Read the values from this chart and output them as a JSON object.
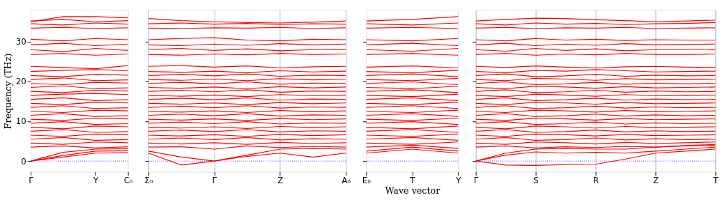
{
  "chart_data": [
    {
      "type": "line",
      "ylabel": "Frequency (THz)",
      "categories": [
        "Γ",
        null,
        "Y",
        "C₀"
      ],
      "ylim": [
        -2.7,
        38
      ],
      "yticks": [
        0,
        10,
        20,
        30
      ],
      "line_style": "solid",
      "ref_lines": [
        {
          "axis": "y",
          "value": 0,
          "color": "#0000ff",
          "line_style": "dotted"
        }
      ],
      "series": [
        {
          "color": "#ff0000",
          "values": [
            0,
            1.0,
            2.0,
            2.1
          ]
        },
        {
          "color": "#ff0000",
          "values": [
            0,
            1.4,
            2.5,
            2.6
          ]
        },
        {
          "color": "#ff0000",
          "values": [
            0,
            2.2,
            3.0,
            3.1
          ]
        },
        {
          "color": "#ff0000",
          "values": [
            3.5,
            3.8,
            3.3,
            3.6
          ]
        },
        {
          "color": "#ff0000",
          "values": [
            4.5,
            4.2,
            4.8,
            4.6
          ]
        },
        {
          "color": "#ff0000",
          "values": [
            5.5,
            5.9,
            5.2,
            5.4
          ]
        },
        {
          "color": "#ff0000",
          "values": [
            6.5,
            6.2,
            6.8,
            6.6
          ]
        },
        {
          "color": "#ff0000",
          "values": [
            7.5,
            7.9,
            7.2,
            7.4
          ]
        },
        {
          "color": "#ff0000",
          "values": [
            8.5,
            8.1,
            8.8,
            8.6
          ]
        },
        {
          "color": "#ff0000",
          "values": [
            9.5,
            9.9,
            9.2,
            9.4
          ]
        },
        {
          "color": "#ff0000",
          "values": [
            10.5,
            10.2,
            10.8,
            10.6
          ]
        },
        {
          "color": "#ff0000",
          "values": [
            11.5,
            11.9,
            11.2,
            11.4
          ]
        },
        {
          "color": "#ff0000",
          "values": [
            12.5,
            12.2,
            12.8,
            12.6
          ]
        },
        {
          "color": "#ff0000",
          "values": [
            13.5,
            13.9,
            13.2,
            13.4
          ]
        },
        {
          "color": "#ff0000",
          "values": [
            14.5,
            14.2,
            14.8,
            14.6
          ]
        },
        {
          "color": "#ff0000",
          "values": [
            15.5,
            15.9,
            15.2,
            15.4
          ]
        },
        {
          "color": "#ff0000",
          "values": [
            16.5,
            16.8,
            17.0,
            16.7
          ]
        },
        {
          "color": "#ff0000",
          "values": [
            17.5,
            17.2,
            17.8,
            17.6
          ]
        },
        {
          "color": "#ff0000",
          "values": [
            18.5,
            18.9,
            18.2,
            18.4
          ]
        },
        {
          "color": "#ff0000",
          "values": [
            19.5,
            19.2,
            19.8,
            19.6
          ]
        },
        {
          "color": "#ff0000",
          "values": [
            20.5,
            20.9,
            20.2,
            20.4
          ]
        },
        {
          "color": "#ff0000",
          "values": [
            21.5,
            21.2,
            21.8,
            21.6
          ]
        },
        {
          "color": "#ff0000",
          "values": [
            22.5,
            22.8,
            23.0,
            22.7
          ]
        },
        {
          "color": "#ff0000",
          "values": [
            23.8,
            23.5,
            23.2,
            24.0
          ]
        },
        {
          "color": "#ff0000",
          "values": [
            26.8,
            27.0,
            26.6,
            26.9
          ]
        },
        {
          "color": "#ff0000",
          "values": [
            28.0,
            27.5,
            28.3,
            27.8
          ]
        },
        {
          "color": "#ff0000",
          "values": [
            29.2,
            29.6,
            29.0,
            29.4
          ]
        },
        {
          "color": "#ff0000",
          "values": [
            30.6,
            30.2,
            30.8,
            30.5
          ]
        },
        {
          "color": "#ff0000",
          "values": [
            33.4,
            33.6,
            33.3,
            33.5
          ]
        },
        {
          "color": "#ff0000",
          "values": [
            34.5,
            34.2,
            34.7,
            34.4
          ]
        },
        {
          "color": "#ff0000",
          "values": [
            35.2,
            35.6,
            35.0,
            35.3
          ]
        },
        {
          "color": "#ff0000",
          "values": [
            35.0,
            36.3,
            36.3,
            36.0
          ]
        }
      ]
    },
    {
      "type": "line",
      "tick_labels": "x",
      "categories": [
        "Σ₀",
        null,
        "Γ",
        null,
        "Z",
        null,
        "A₀"
      ],
      "ylim": [
        -2.7,
        38
      ],
      "yticks": [
        0,
        10,
        20,
        30
      ],
      "grid": "x",
      "line_style": "solid",
      "ref_lines": [
        {
          "axis": "y",
          "value": 0,
          "color": "#0000ff",
          "line_style": "dotted"
        }
      ],
      "series": [
        {
          "color": "#ff0000",
          "values": [
            2.0,
            -1.0,
            0.0,
            1.2,
            2.0,
            1.0,
            2.0
          ]
        },
        {
          "color": "#ff0000",
          "values": [
            2.5,
            1.0,
            0.0,
            1.5,
            3.0,
            3.2,
            3.0
          ]
        },
        {
          "color": "#ff0000",
          "values": [
            3.5,
            3.6,
            3.0,
            3.8,
            3.4,
            3.7,
            3.5
          ]
        },
        {
          "color": "#ff0000",
          "values": [
            4.5,
            4.3,
            4.6,
            4.2,
            4.7,
            4.4,
            4.6
          ]
        },
        {
          "color": "#ff0000",
          "values": [
            5.5,
            5.8,
            5.4,
            5.9,
            5.3,
            5.6,
            5.5
          ]
        },
        {
          "color": "#ff0000",
          "values": [
            6.5,
            6.3,
            6.6,
            6.2,
            6.7,
            6.4,
            6.6
          ]
        },
        {
          "color": "#ff0000",
          "values": [
            7.5,
            7.8,
            7.4,
            7.9,
            7.3,
            7.6,
            7.5
          ]
        },
        {
          "color": "#ff0000",
          "values": [
            8.5,
            8.3,
            8.6,
            8.2,
            8.7,
            8.4,
            8.6
          ]
        },
        {
          "color": "#ff0000",
          "values": [
            9.5,
            9.8,
            9.4,
            9.9,
            9.3,
            9.6,
            9.5
          ]
        },
        {
          "color": "#ff0000",
          "values": [
            10.5,
            10.3,
            10.6,
            10.2,
            10.7,
            10.4,
            10.6
          ]
        },
        {
          "color": "#ff0000",
          "values": [
            11.5,
            11.8,
            11.4,
            11.9,
            11.3,
            11.6,
            11.5
          ]
        },
        {
          "color": "#ff0000",
          "values": [
            12.5,
            12.3,
            12.6,
            12.2,
            12.7,
            12.4,
            12.6
          ]
        },
        {
          "color": "#ff0000",
          "values": [
            13.5,
            13.8,
            13.4,
            13.9,
            13.3,
            13.6,
            13.5
          ]
        },
        {
          "color": "#ff0000",
          "values": [
            14.5,
            14.3,
            14.6,
            14.2,
            14.7,
            14.4,
            14.6
          ]
        },
        {
          "color": "#ff0000",
          "values": [
            15.5,
            15.8,
            15.4,
            15.9,
            15.3,
            15.6,
            15.5
          ]
        },
        {
          "color": "#ff0000",
          "values": [
            16.5,
            16.3,
            16.6,
            16.2,
            16.7,
            16.4,
            16.6
          ]
        },
        {
          "color": "#ff0000",
          "values": [
            17.5,
            17.8,
            17.4,
            17.9,
            17.3,
            17.6,
            17.5
          ]
        },
        {
          "color": "#ff0000",
          "values": [
            18.5,
            18.3,
            18.6,
            18.2,
            18.7,
            18.4,
            18.6
          ]
        },
        {
          "color": "#ff0000",
          "values": [
            19.5,
            19.8,
            19.4,
            19.9,
            19.3,
            19.6,
            19.5
          ]
        },
        {
          "color": "#ff0000",
          "values": [
            20.5,
            20.3,
            20.6,
            20.2,
            20.7,
            20.4,
            20.6
          ]
        },
        {
          "color": "#ff0000",
          "values": [
            21.5,
            21.8,
            21.4,
            21.9,
            21.3,
            21.6,
            21.5
          ]
        },
        {
          "color": "#ff0000",
          "values": [
            22.5,
            22.3,
            22.6,
            22.2,
            22.7,
            22.4,
            22.6
          ]
        },
        {
          "color": "#ff0000",
          "values": [
            23.8,
            24.0,
            23.6,
            23.9,
            23.4,
            23.7,
            23.8
          ]
        },
        {
          "color": "#ff0000",
          "values": [
            26.8,
            26.6,
            26.9,
            26.7,
            27.0,
            26.8,
            26.9
          ]
        },
        {
          "color": "#ff0000",
          "values": [
            28.0,
            28.3,
            27.8,
            28.2,
            27.7,
            28.0,
            28.1
          ]
        },
        {
          "color": "#ff0000",
          "values": [
            29.2,
            29.0,
            29.4,
            29.1,
            29.5,
            29.2,
            29.4
          ]
        },
        {
          "color": "#ff0000",
          "values": [
            30.5,
            30.8,
            31.0,
            30.4,
            30.2,
            30.6,
            30.5
          ]
        },
        {
          "color": "#ff0000",
          "values": [
            33.4,
            33.3,
            33.5,
            33.4,
            33.6,
            33.3,
            33.5
          ]
        },
        {
          "color": "#ff0000",
          "values": [
            34.5,
            34.7,
            34.4,
            34.6,
            34.3,
            34.5,
            34.4
          ]
        },
        {
          "color": "#ff0000",
          "values": [
            35.8,
            35.3,
            35.0,
            34.8,
            34.7,
            34.9,
            35.2
          ]
        }
      ]
    },
    {
      "type": "line",
      "tick_labels": "x",
      "xlabel": "Wave vector",
      "categories": [
        "E₀",
        "T",
        "Y"
      ],
      "ylim": [
        -2.7,
        38
      ],
      "yticks": [
        0,
        10,
        20,
        30
      ],
      "line_style": "solid",
      "ref_lines": [
        {
          "axis": "y",
          "value": 0,
          "color": "#0000ff",
          "line_style": "dotted"
        }
      ],
      "series": [
        {
          "color": "#ff0000",
          "values": [
            2.0,
            3.0,
            2.0
          ]
        },
        {
          "color": "#ff0000",
          "values": [
            2.5,
            3.5,
            2.5
          ]
        },
        {
          "color": "#ff0000",
          "values": [
            3.5,
            4.0,
            3.2
          ]
        },
        {
          "color": "#ff0000",
          "values": [
            4.5,
            4.2,
            4.8
          ]
        },
        {
          "color": "#ff0000",
          "values": [
            5.5,
            5.9,
            5.2
          ]
        },
        {
          "color": "#ff0000",
          "values": [
            6.5,
            6.2,
            6.8
          ]
        },
        {
          "color": "#ff0000",
          "values": [
            7.5,
            7.9,
            7.2
          ]
        },
        {
          "color": "#ff0000",
          "values": [
            8.5,
            8.1,
            8.8
          ]
        },
        {
          "color": "#ff0000",
          "values": [
            9.5,
            9.9,
            9.2
          ]
        },
        {
          "color": "#ff0000",
          "values": [
            10.5,
            10.2,
            10.8
          ]
        },
        {
          "color": "#ff0000",
          "values": [
            11.5,
            11.9,
            11.2
          ]
        },
        {
          "color": "#ff0000",
          "values": [
            12.5,
            12.2,
            12.8
          ]
        },
        {
          "color": "#ff0000",
          "values": [
            13.5,
            13.9,
            13.2
          ]
        },
        {
          "color": "#ff0000",
          "values": [
            14.5,
            14.2,
            14.8
          ]
        },
        {
          "color": "#ff0000",
          "values": [
            15.5,
            15.9,
            15.2
          ]
        },
        {
          "color": "#ff0000",
          "values": [
            16.5,
            16.2,
            16.8
          ]
        },
        {
          "color": "#ff0000",
          "values": [
            17.5,
            17.9,
            17.2
          ]
        },
        {
          "color": "#ff0000",
          "values": [
            18.5,
            18.2,
            18.8
          ]
        },
        {
          "color": "#ff0000",
          "values": [
            19.5,
            19.9,
            19.2
          ]
        },
        {
          "color": "#ff0000",
          "values": [
            20.5,
            20.2,
            20.8
          ]
        },
        {
          "color": "#ff0000",
          "values": [
            21.5,
            21.9,
            21.2
          ]
        },
        {
          "color": "#ff0000",
          "values": [
            22.5,
            22.2,
            22.8
          ]
        },
        {
          "color": "#ff0000",
          "values": [
            23.6,
            23.9,
            23.4
          ]
        },
        {
          "color": "#ff0000",
          "values": [
            26.8,
            27.0,
            26.6
          ]
        },
        {
          "color": "#ff0000",
          "values": [
            28.0,
            27.6,
            28.3
          ]
        },
        {
          "color": "#ff0000",
          "values": [
            29.2,
            29.6,
            29.0
          ]
        },
        {
          "color": "#ff0000",
          "values": [
            30.5,
            30.2,
            30.8
          ]
        },
        {
          "color": "#ff0000",
          "values": [
            33.4,
            33.6,
            33.3
          ]
        },
        {
          "color": "#ff0000",
          "values": [
            34.5,
            34.2,
            34.7
          ]
        },
        {
          "color": "#ff0000",
          "values": [
            35.2,
            35.6,
            36.3
          ]
        }
      ]
    },
    {
      "type": "line",
      "tick_labels": "x",
      "categories": [
        "Γ",
        null,
        "S",
        null,
        "R",
        null,
        "Z",
        null,
        "T"
      ],
      "ylim": [
        -2.7,
        38
      ],
      "yticks": [
        0,
        10,
        20,
        30
      ],
      "grid": "x",
      "line_style": "solid",
      "ref_lines": [
        {
          "axis": "y",
          "value": 0,
          "color": "#0000ff",
          "line_style": "dotted"
        }
      ],
      "series": [
        {
          "color": "#ff0000",
          "values": [
            0,
            -1.0,
            -1.1,
            -0.9,
            -0.8,
            0.5,
            2.0,
            2.5,
            3.0
          ]
        },
        {
          "color": "#ff0000",
          "values": [
            0,
            1.5,
            2.3,
            2.0,
            2.2,
            2.0,
            2.5,
            3.0,
            3.5
          ]
        },
        {
          "color": "#ff0000",
          "values": [
            0,
            2.0,
            3.0,
            3.2,
            3.0,
            3.0,
            3.5,
            3.8,
            4.0
          ]
        },
        {
          "color": "#ff0000",
          "values": [
            3.5,
            3.8,
            3.3,
            3.6,
            3.4,
            3.7,
            3.5,
            3.9,
            4.2
          ]
        },
        {
          "color": "#ff0000",
          "values": [
            4.5,
            4.2,
            4.8,
            4.6,
            4.3,
            4.7,
            4.4,
            4.6,
            4.8
          ]
        },
        {
          "color": "#ff0000",
          "values": [
            5.5,
            5.9,
            5.2,
            5.4,
            5.8,
            5.3,
            5.6,
            5.4,
            5.5
          ]
        },
        {
          "color": "#ff0000",
          "values": [
            6.5,
            6.2,
            6.8,
            6.6,
            6.3,
            6.7,
            6.4,
            6.5,
            6.6
          ]
        },
        {
          "color": "#ff0000",
          "values": [
            7.5,
            7.9,
            7.2,
            7.4,
            7.8,
            7.3,
            7.6,
            7.4,
            7.5
          ]
        },
        {
          "color": "#ff0000",
          "values": [
            8.5,
            8.1,
            8.8,
            8.6,
            8.3,
            8.7,
            8.4,
            8.5,
            8.6
          ]
        },
        {
          "color": "#ff0000",
          "values": [
            9.5,
            9.9,
            9.2,
            9.4,
            9.8,
            9.3,
            9.6,
            9.4,
            9.5
          ]
        },
        {
          "color": "#ff0000",
          "values": [
            10.5,
            10.2,
            10.8,
            10.6,
            10.3,
            10.7,
            10.4,
            10.5,
            10.6
          ]
        },
        {
          "color": "#ff0000",
          "values": [
            11.5,
            11.9,
            11.2,
            11.4,
            11.8,
            11.3,
            11.6,
            11.4,
            11.5
          ]
        },
        {
          "color": "#ff0000",
          "values": [
            12.5,
            12.2,
            12.8,
            12.6,
            12.3,
            12.7,
            12.4,
            12.5,
            12.6
          ]
        },
        {
          "color": "#ff0000",
          "values": [
            13.5,
            13.9,
            13.2,
            13.4,
            13.8,
            13.3,
            13.6,
            13.4,
            13.5
          ]
        },
        {
          "color": "#ff0000",
          "values": [
            14.5,
            14.2,
            14.8,
            14.6,
            14.3,
            14.7,
            14.4,
            14.5,
            14.6
          ]
        },
        {
          "color": "#ff0000",
          "values": [
            15.5,
            15.9,
            15.2,
            15.4,
            15.8,
            15.3,
            15.6,
            15.4,
            15.5
          ]
        },
        {
          "color": "#ff0000",
          "values": [
            16.5,
            16.2,
            16.8,
            16.6,
            16.3,
            16.7,
            16.4,
            16.5,
            16.6
          ]
        },
        {
          "color": "#ff0000",
          "values": [
            17.5,
            17.9,
            17.2,
            17.4,
            17.8,
            17.3,
            17.6,
            17.4,
            17.5
          ]
        },
        {
          "color": "#ff0000",
          "values": [
            18.5,
            18.2,
            18.8,
            18.6,
            18.3,
            18.7,
            18.4,
            18.5,
            18.6
          ]
        },
        {
          "color": "#ff0000",
          "values": [
            19.5,
            19.9,
            19.2,
            19.4,
            19.8,
            19.3,
            19.6,
            19.4,
            19.5
          ]
        },
        {
          "color": "#ff0000",
          "values": [
            20.5,
            20.2,
            20.8,
            20.6,
            20.3,
            20.7,
            20.4,
            20.5,
            20.6
          ]
        },
        {
          "color": "#ff0000",
          "values": [
            21.5,
            21.9,
            21.2,
            21.4,
            21.8,
            21.3,
            21.6,
            21.4,
            21.5
          ]
        },
        {
          "color": "#ff0000",
          "values": [
            22.5,
            22.2,
            22.8,
            22.6,
            23.0,
            22.7,
            22.4,
            22.5,
            22.6
          ]
        },
        {
          "color": "#ff0000",
          "values": [
            23.8,
            23.5,
            23.9,
            23.6,
            23.4,
            23.7,
            23.8,
            23.6,
            23.5
          ]
        },
        {
          "color": "#ff0000",
          "values": [
            26.8,
            27.0,
            26.6,
            26.9,
            26.7,
            27.0,
            26.8,
            26.8,
            26.9
          ]
        },
        {
          "color": "#ff0000",
          "values": [
            28.0,
            27.6,
            28.3,
            27.8,
            28.2,
            27.7,
            28.0,
            28.0,
            28.1
          ]
        },
        {
          "color": "#ff0000",
          "values": [
            29.2,
            29.6,
            29.0,
            29.4,
            29.1,
            29.5,
            29.2,
            29.3,
            29.4
          ]
        },
        {
          "color": "#ff0000",
          "values": [
            30.5,
            30.2,
            30.8,
            30.4,
            30.6,
            30.3,
            30.5,
            30.4,
            30.4
          ]
        },
        {
          "color": "#ff0000",
          "values": [
            33.4,
            33.6,
            33.3,
            33.5,
            33.4,
            33.6,
            33.3,
            33.4,
            33.5
          ]
        },
        {
          "color": "#ff0000",
          "values": [
            34.5,
            34.2,
            34.7,
            34.4,
            34.6,
            34.3,
            34.5,
            34.6,
            34.8
          ]
        },
        {
          "color": "#ff0000",
          "values": [
            35.2,
            35.6,
            35.9,
            35.8,
            35.5,
            35.3,
            35.0,
            35.2,
            35.4
          ]
        }
      ]
    }
  ]
}
